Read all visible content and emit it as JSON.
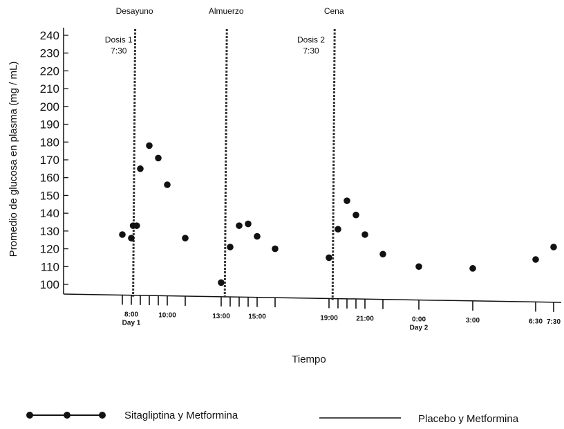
{
  "chart_data": {
    "type": "scatter",
    "title": "",
    "xlabel": "Tiempo",
    "ylabel": "Promedio de glucosa en plasma (mg / mL)",
    "ylim": [
      100,
      240
    ],
    "yticks": [
      100,
      110,
      120,
      130,
      140,
      150,
      160,
      170,
      180,
      190,
      200,
      210,
      220,
      230,
      240
    ],
    "x_unit": "hours from Day 1 00:00",
    "xlim": [
      6.5,
      32.0
    ],
    "xtick_marks": [
      7.5,
      8.0,
      8.5,
      9.0,
      9.5,
      10.0,
      11.0,
      13.0,
      13.5,
      14.0,
      14.5,
      15.0,
      16.0,
      19.0,
      19.5,
      20.0,
      20.5,
      21.0,
      22.0,
      24.0,
      27.0,
      30.5,
      31.5
    ],
    "xtick_labels": [
      {
        "x": 8.0,
        "lines": [
          "8:00",
          "Day 1"
        ]
      },
      {
        "x": 10.0,
        "lines": [
          "10:00"
        ]
      },
      {
        "x": 13.0,
        "lines": [
          "13:00"
        ]
      },
      {
        "x": 15.0,
        "lines": [
          "15:00"
        ]
      },
      {
        "x": 19.0,
        "lines": [
          "19:00"
        ]
      },
      {
        "x": 21.0,
        "lines": [
          "21:00"
        ]
      },
      {
        "x": 24.0,
        "lines": [
          "0:00",
          "Day 2"
        ]
      },
      {
        "x": 27.0,
        "lines": [
          "3:00"
        ]
      },
      {
        "x": 30.5,
        "lines": [
          "6:30"
        ]
      },
      {
        "x": 31.5,
        "lines": [
          "7:30"
        ]
      }
    ],
    "series": [
      {
        "name": "Sitagliptina y Metformina",
        "points": [
          {
            "x": 7.5,
            "y": 128
          },
          {
            "x": 8.0,
            "y": 126
          },
          {
            "x": 8.1,
            "y": 133
          },
          {
            "x": 8.3,
            "y": 133
          },
          {
            "x": 8.5,
            "y": 165
          },
          {
            "x": 9.0,
            "y": 178
          },
          {
            "x": 9.5,
            "y": 171
          },
          {
            "x": 10.0,
            "y": 156
          },
          {
            "x": 11.0,
            "y": 126
          },
          {
            "x": 13.0,
            "y": 101
          },
          {
            "x": 13.5,
            "y": 121
          },
          {
            "x": 14.0,
            "y": 133
          },
          {
            "x": 14.5,
            "y": 134
          },
          {
            "x": 15.0,
            "y": 127
          },
          {
            "x": 16.0,
            "y": 120
          },
          {
            "x": 19.0,
            "y": 115
          },
          {
            "x": 19.5,
            "y": 131
          },
          {
            "x": 20.0,
            "y": 147
          },
          {
            "x": 20.5,
            "y": 139
          },
          {
            "x": 21.0,
            "y": 128
          },
          {
            "x": 22.0,
            "y": 117
          },
          {
            "x": 24.0,
            "y": 110
          },
          {
            "x": 27.0,
            "y": 109
          },
          {
            "x": 30.5,
            "y": 114
          },
          {
            "x": 31.5,
            "y": 121
          }
        ]
      },
      {
        "name": "Placebo y Metformina",
        "points": []
      }
    ],
    "vertical_lines": [
      {
        "x": 8.1,
        "label": "Desayuno"
      },
      {
        "x": 13.2,
        "label": "Almuerzo"
      },
      {
        "x": 19.2,
        "label": "Cena"
      }
    ],
    "annotations": [
      {
        "x": 7.3,
        "y": 236,
        "lines": [
          "Dosis 1",
          "7:30"
        ]
      },
      {
        "x": 18.0,
        "y": 236,
        "lines": [
          "Dosis 2",
          "7:30"
        ]
      }
    ],
    "legend_position": "bottom",
    "grid": false
  }
}
